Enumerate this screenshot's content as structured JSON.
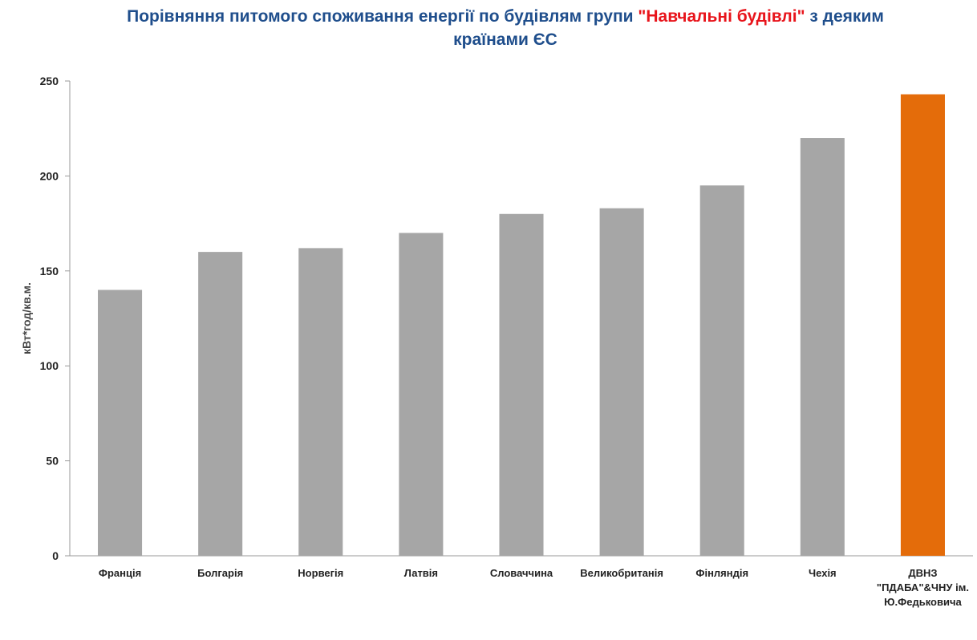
{
  "title": {
    "part1": "Порівняння питомого споживання енергії по будівлям групи ",
    "highlight": "\"Навчальні будівлі\"",
    "part2": " з деяким",
    "line2": "країнами ЄС"
  },
  "chart_data": {
    "type": "bar",
    "ylabel": "кВт*год/кв.м.",
    "xlabel": "",
    "ylim": [
      0,
      250
    ],
    "yticks": [
      0,
      50,
      100,
      150,
      200,
      250
    ],
    "grid": false,
    "categories": [
      "Франція",
      "Болгарія",
      "Норвегія",
      "Латвія",
      "Словаччина",
      "Великобританія",
      "Фінляндія",
      "Чехія",
      "ДВНЗ \"ПДАБА\"&ЧНУ ім. Ю.Федьковича"
    ],
    "category_lines": [
      [
        "Франція"
      ],
      [
        "Болгарія"
      ],
      [
        "Норвегія"
      ],
      [
        "Латвія"
      ],
      [
        "Словаччина"
      ],
      [
        "Великобританія"
      ],
      [
        "Фінляндія"
      ],
      [
        "Чехія"
      ],
      [
        "ДВНЗ",
        "\"ПДАБА\"&ЧНУ ім.",
        "Ю.Федьковича"
      ]
    ],
    "values": [
      140,
      160,
      162,
      170,
      180,
      183,
      195,
      220,
      243
    ],
    "colors": [
      "#A6A6A6",
      "#A6A6A6",
      "#A6A6A6",
      "#A6A6A6",
      "#A6A6A6",
      "#A6A6A6",
      "#A6A6A6",
      "#A6A6A6",
      "#E46C0A"
    ]
  }
}
